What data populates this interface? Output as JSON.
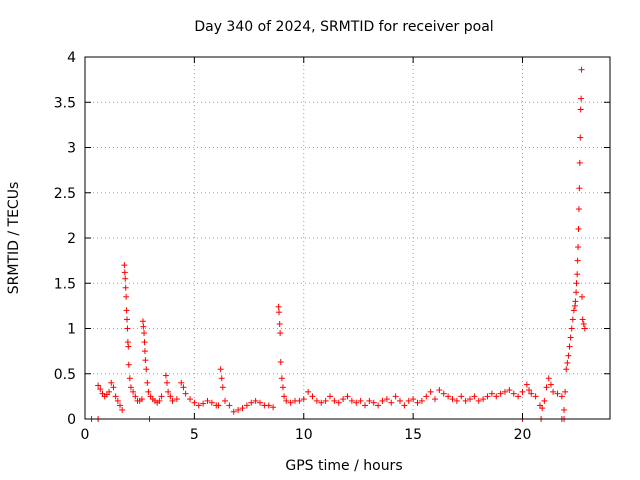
{
  "chart_data": {
    "type": "scatter",
    "title": "Day 340 of 2024, SRMTID for receiver poal",
    "xlabel": "GPS time / hours",
    "ylabel": "SRMTID / TECUs",
    "xlim": [
      0,
      24
    ],
    "ylim": [
      0,
      4
    ],
    "xticks": [
      0,
      5,
      10,
      15,
      20
    ],
    "yticks": [
      0,
      0.5,
      1,
      1.5,
      2,
      2.5,
      3,
      3.5,
      4
    ],
    "xtick_labels": [
      "0",
      "5",
      "10",
      "15",
      "20"
    ],
    "ytick_labels": [
      "0",
      "0.5",
      "1",
      "1.5",
      "2",
      "2.5",
      "3",
      "3.5",
      "4"
    ],
    "grid": true,
    "marker": "+",
    "series": [
      {
        "name": "SRMTID",
        "color": "#ff0000",
        "points": [
          [
            0.3,
            0.0
          ],
          [
            0.6,
            0.0
          ],
          [
            0.6,
            0.37
          ],
          [
            0.7,
            0.33
          ],
          [
            0.8,
            0.28
          ],
          [
            0.9,
            0.25
          ],
          [
            1.0,
            0.27
          ],
          [
            1.1,
            0.3
          ],
          [
            1.2,
            0.4
          ],
          [
            1.3,
            0.35
          ],
          [
            1.4,
            0.25
          ],
          [
            1.5,
            0.2
          ],
          [
            1.6,
            0.15
          ],
          [
            1.7,
            0.1
          ],
          [
            1.8,
            1.7
          ],
          [
            1.82,
            1.62
          ],
          [
            1.84,
            1.55
          ],
          [
            1.86,
            1.45
          ],
          [
            1.88,
            1.35
          ],
          [
            1.9,
            1.2
          ],
          [
            1.92,
            1.1
          ],
          [
            1.94,
            1.0
          ],
          [
            1.96,
            0.85
          ],
          [
            1.98,
            0.8
          ],
          [
            2.0,
            0.6
          ],
          [
            2.05,
            0.45
          ],
          [
            2.1,
            0.35
          ],
          [
            2.2,
            0.3
          ],
          [
            2.3,
            0.25
          ],
          [
            2.4,
            0.2
          ],
          [
            2.5,
            0.2
          ],
          [
            2.6,
            0.22
          ],
          [
            2.65,
            1.08
          ],
          [
            2.67,
            1.02
          ],
          [
            2.7,
            0.95
          ],
          [
            2.72,
            0.85
          ],
          [
            2.74,
            0.75
          ],
          [
            2.76,
            0.65
          ],
          [
            2.8,
            0.55
          ],
          [
            2.85,
            0.4
          ],
          [
            2.9,
            0.3
          ],
          [
            3.0,
            0.25
          ],
          [
            3.1,
            0.22
          ],
          [
            3.2,
            0.2
          ],
          [
            3.3,
            0.18
          ],
          [
            3.4,
            0.2
          ],
          [
            3.5,
            0.25
          ],
          [
            3.7,
            0.48
          ],
          [
            3.75,
            0.4
          ],
          [
            3.8,
            0.3
          ],
          [
            3.9,
            0.25
          ],
          [
            4.0,
            0.2
          ],
          [
            4.2,
            0.22
          ],
          [
            4.4,
            0.4
          ],
          [
            4.5,
            0.35
          ],
          [
            4.6,
            0.28
          ],
          [
            4.8,
            0.22
          ],
          [
            5.0,
            0.18
          ],
          [
            5.2,
            0.15
          ],
          [
            5.4,
            0.17
          ],
          [
            5.6,
            0.2
          ],
          [
            5.8,
            0.18
          ],
          [
            6.0,
            0.15
          ],
          [
            6.1,
            0.15
          ],
          [
            6.2,
            0.55
          ],
          [
            6.25,
            0.45
          ],
          [
            6.3,
            0.35
          ],
          [
            6.4,
            0.2
          ],
          [
            6.6,
            0.15
          ],
          [
            6.8,
            0.08
          ],
          [
            7.0,
            0.1
          ],
          [
            7.2,
            0.12
          ],
          [
            7.4,
            0.15
          ],
          [
            7.6,
            0.18
          ],
          [
            7.8,
            0.2
          ],
          [
            8.0,
            0.18
          ],
          [
            8.2,
            0.15
          ],
          [
            8.4,
            0.15
          ],
          [
            8.6,
            0.13
          ],
          [
            8.85,
            1.24
          ],
          [
            8.87,
            1.18
          ],
          [
            8.9,
            1.05
          ],
          [
            8.92,
            0.95
          ],
          [
            8.95,
            0.63
          ],
          [
            9.0,
            0.45
          ],
          [
            9.05,
            0.35
          ],
          [
            9.1,
            0.25
          ],
          [
            9.2,
            0.2
          ],
          [
            9.4,
            0.18
          ],
          [
            9.6,
            0.2
          ],
          [
            9.8,
            0.2
          ],
          [
            10.0,
            0.22
          ],
          [
            10.2,
            0.3
          ],
          [
            10.4,
            0.25
          ],
          [
            10.6,
            0.2
          ],
          [
            10.8,
            0.18
          ],
          [
            11.0,
            0.2
          ],
          [
            11.2,
            0.25
          ],
          [
            11.4,
            0.2
          ],
          [
            11.6,
            0.18
          ],
          [
            11.8,
            0.22
          ],
          [
            12.0,
            0.25
          ],
          [
            12.2,
            0.2
          ],
          [
            12.4,
            0.18
          ],
          [
            12.6,
            0.2
          ],
          [
            12.8,
            0.15
          ],
          [
            13.0,
            0.2
          ],
          [
            13.2,
            0.18
          ],
          [
            13.4,
            0.15
          ],
          [
            13.6,
            0.2
          ],
          [
            13.8,
            0.22
          ],
          [
            14.0,
            0.18
          ],
          [
            14.2,
            0.25
          ],
          [
            14.4,
            0.2
          ],
          [
            14.6,
            0.15
          ],
          [
            14.8,
            0.2
          ],
          [
            15.0,
            0.22
          ],
          [
            15.2,
            0.18
          ],
          [
            15.4,
            0.2
          ],
          [
            15.6,
            0.25
          ],
          [
            15.8,
            0.3
          ],
          [
            16.0,
            0.22
          ],
          [
            16.2,
            0.32
          ],
          [
            16.4,
            0.28
          ],
          [
            16.6,
            0.25
          ],
          [
            16.8,
            0.22
          ],
          [
            17.0,
            0.2
          ],
          [
            17.2,
            0.25
          ],
          [
            17.4,
            0.2
          ],
          [
            17.6,
            0.22
          ],
          [
            17.8,
            0.25
          ],
          [
            18.0,
            0.2
          ],
          [
            18.2,
            0.22
          ],
          [
            18.4,
            0.25
          ],
          [
            18.6,
            0.28
          ],
          [
            18.8,
            0.25
          ],
          [
            19.0,
            0.28
          ],
          [
            19.2,
            0.3
          ],
          [
            19.4,
            0.32
          ],
          [
            19.6,
            0.28
          ],
          [
            19.8,
            0.25
          ],
          [
            20.0,
            0.3
          ],
          [
            20.2,
            0.38
          ],
          [
            20.3,
            0.32
          ],
          [
            20.4,
            0.28
          ],
          [
            20.6,
            0.25
          ],
          [
            20.8,
            0.15
          ],
          [
            20.9,
            0.12
          ],
          [
            21.0,
            0.2
          ],
          [
            21.1,
            0.35
          ],
          [
            21.2,
            0.45
          ],
          [
            21.3,
            0.38
          ],
          [
            21.4,
            0.3
          ],
          [
            21.6,
            0.28
          ],
          [
            21.8,
            0.25
          ],
          [
            21.9,
            0.1
          ],
          [
            21.95,
            0.3
          ],
          [
            22.0,
            0.55
          ],
          [
            22.05,
            0.62
          ],
          [
            22.1,
            0.7
          ],
          [
            22.15,
            0.8
          ],
          [
            22.2,
            0.9
          ],
          [
            22.25,
            1.0
          ],
          [
            22.3,
            1.1
          ],
          [
            22.35,
            1.2
          ],
          [
            22.4,
            1.25
          ],
          [
            22.42,
            1.3
          ],
          [
            22.45,
            1.4
          ],
          [
            22.47,
            1.5
          ],
          [
            22.5,
            1.6
          ],
          [
            22.52,
            1.75
          ],
          [
            22.54,
            1.9
          ],
          [
            22.56,
            2.1
          ],
          [
            22.58,
            2.32
          ],
          [
            22.6,
            2.55
          ],
          [
            22.62,
            2.83
          ],
          [
            22.64,
            3.11
          ],
          [
            22.66,
            3.42
          ],
          [
            22.68,
            3.54
          ],
          [
            22.7,
            3.86
          ],
          [
            22.72,
            1.35
          ],
          [
            22.75,
            1.1
          ],
          [
            22.8,
            1.05
          ],
          [
            22.85,
            1.0
          ],
          [
            20.0,
            0.0
          ],
          [
            20.85,
            0.0
          ],
          [
            21.8,
            0.0
          ],
          [
            21.9,
            0.0
          ],
          [
            2.95,
            0.0
          ]
        ]
      }
    ]
  }
}
